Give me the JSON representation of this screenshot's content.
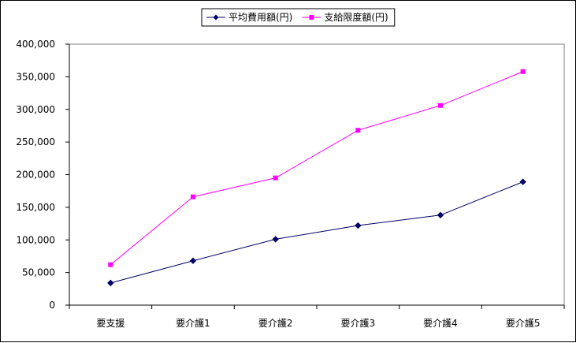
{
  "chart_data": {
    "type": "line",
    "categories": [
      "要支援",
      "要介護1",
      "要介護2",
      "要介護3",
      "要介護4",
      "要介護5"
    ],
    "series": [
      {
        "name": "平均費用額(円)",
        "color": "#000066",
        "marker": "diamond",
        "values": [
          34000,
          68000,
          101000,
          122000,
          138000,
          189000
        ]
      },
      {
        "name": "支給限度額(円)",
        "color": "#ff00ff",
        "marker": "square",
        "values": [
          62000,
          166000,
          195000,
          268000,
          306000,
          358000
        ]
      }
    ],
    "ylim": [
      0,
      400000
    ],
    "yticks": [
      {
        "value": 0,
        "label": "0"
      },
      {
        "value": 50000,
        "label": "50,000"
      },
      {
        "value": 100000,
        "label": "100,000"
      },
      {
        "value": 150000,
        "label": "150,000"
      },
      {
        "value": 200000,
        "label": "200,000"
      },
      {
        "value": 250000,
        "label": "250,000"
      },
      {
        "value": 300000,
        "label": "300,000"
      },
      {
        "value": 350000,
        "label": "350,000"
      },
      {
        "value": 400000,
        "label": "400,000"
      }
    ],
    "legend_position": "top-center",
    "grid": false
  }
}
